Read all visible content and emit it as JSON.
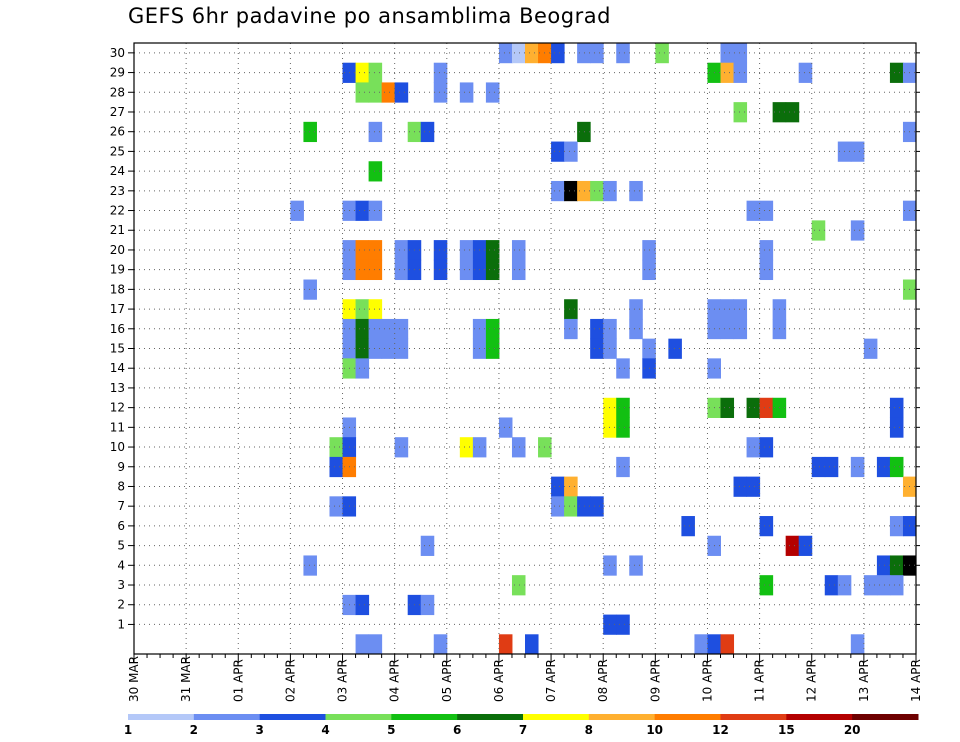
{
  "chart_data": {
    "type": "heatmap",
    "title": "GEFS 6hr padavine po ansamblima Beograd",
    "xlabel": "",
    "ylabel": "",
    "x_ticks": [
      "30 MAR",
      "31 MAR",
      "01 APR",
      "02 APR",
      "03 APR",
      "04 APR",
      "05 APR",
      "06 APR",
      "07 APR",
      "08 APR",
      "09 APR",
      "10 APR",
      "11 APR",
      "12 APR",
      "13 APR",
      "14 APR"
    ],
    "y_ticks": [
      "1",
      "2",
      "3",
      "4",
      "5",
      "6",
      "7",
      "8",
      "9",
      "10",
      "11",
      "12",
      "13",
      "14",
      "15",
      "16",
      "17",
      "18",
      "19",
      "20",
      "21",
      "22",
      "23",
      "24",
      "25",
      "26",
      "27",
      "28",
      "29",
      "30"
    ],
    "x_range_days": [
      0,
      15
    ],
    "y_range_members": [
      0,
      30
    ],
    "grid": true,
    "legend": {
      "placement": "bottom",
      "colors": [
        "#b4c8f8",
        "#6c8ef2",
        "#1e4fe0",
        "#78e05a",
        "#12c012",
        "#0b6e0b",
        "#ffff00",
        "#ffb030",
        "#ff7d00",
        "#e03c14",
        "#b40000",
        "#6e0000"
      ],
      "labels": [
        "1",
        "2",
        "3",
        "4",
        "5",
        "6",
        "7",
        "8",
        "10",
        "12",
        "15",
        "20"
      ]
    },
    "cells": [
      {
        "m": 30,
        "t": [
          [
            28,
            1
          ],
          [
            29,
            0
          ],
          [
            30,
            7
          ],
          [
            31,
            8
          ],
          [
            32,
            2
          ],
          [
            34,
            1
          ],
          [
            35,
            1
          ],
          [
            37,
            1
          ],
          [
            40,
            3
          ],
          [
            45,
            1
          ],
          [
            46,
            1
          ]
        ]
      },
      {
        "m": 29,
        "t": [
          [
            16,
            2
          ],
          [
            17,
            6
          ],
          [
            18,
            3
          ],
          [
            23,
            1
          ],
          [
            44,
            4
          ],
          [
            45,
            7
          ],
          [
            46,
            1
          ],
          [
            51,
            1
          ],
          [
            58,
            5
          ],
          [
            59,
            1
          ]
        ]
      },
      {
        "m": 28,
        "t": [
          [
            17,
            3
          ],
          [
            18,
            3
          ],
          [
            19,
            8
          ],
          [
            20,
            2
          ],
          [
            23,
            1
          ],
          [
            25,
            1
          ],
          [
            27,
            1
          ]
        ]
      },
      {
        "m": 27,
        "t": [
          [
            46,
            3
          ],
          [
            49,
            5
          ],
          [
            50,
            5
          ]
        ]
      },
      {
        "m": 26,
        "t": [
          [
            13,
            4
          ],
          [
            18,
            1
          ],
          [
            21,
            3
          ],
          [
            22,
            2
          ],
          [
            34,
            5
          ],
          [
            59,
            1
          ]
        ]
      },
      {
        "m": 25,
        "t": [
          [
            32,
            2
          ],
          [
            33,
            1
          ],
          [
            54,
            1
          ],
          [
            55,
            1
          ]
        ]
      },
      {
        "m": 24,
        "t": [
          [
            18,
            4
          ]
        ]
      },
      {
        "m": 23,
        "t": [
          [
            32,
            1
          ],
          [
            33,
            12
          ],
          [
            34,
            7
          ],
          [
            35,
            3
          ],
          [
            36,
            1
          ],
          [
            38,
            1
          ]
        ]
      },
      {
        "m": 22,
        "t": [
          [
            12,
            1
          ],
          [
            16,
            1
          ],
          [
            17,
            2
          ],
          [
            18,
            1
          ],
          [
            47,
            1
          ],
          [
            48,
            1
          ],
          [
            59,
            1
          ]
        ]
      },
      {
        "m": 21,
        "t": [
          [
            52,
            3
          ],
          [
            55,
            1
          ]
        ]
      },
      {
        "m": 20,
        "t": [
          [
            16,
            1
          ],
          [
            17,
            8
          ],
          [
            18,
            8
          ],
          [
            20,
            1
          ],
          [
            21,
            2
          ],
          [
            23,
            2
          ],
          [
            25,
            1
          ],
          [
            26,
            2
          ],
          [
            27,
            5
          ],
          [
            29,
            1
          ],
          [
            39,
            1
          ],
          [
            48,
            1
          ]
        ]
      },
      {
        "m": 19,
        "t": [
          [
            16,
            1
          ],
          [
            17,
            8
          ],
          [
            18,
            8
          ],
          [
            20,
            1
          ],
          [
            21,
            2
          ],
          [
            23,
            2
          ],
          [
            25,
            1
          ],
          [
            26,
            2
          ],
          [
            27,
            5
          ],
          [
            29,
            1
          ],
          [
            39,
            1
          ],
          [
            48,
            1
          ]
        ]
      },
      {
        "m": 18,
        "t": [
          [
            13,
            1
          ],
          [
            59,
            3
          ]
        ]
      },
      {
        "m": 17,
        "t": [
          [
            16,
            6
          ],
          [
            17,
            3
          ],
          [
            18,
            6
          ],
          [
            33,
            5
          ],
          [
            38,
            1
          ],
          [
            44,
            1
          ],
          [
            45,
            1
          ],
          [
            46,
            1
          ],
          [
            49,
            1
          ]
        ]
      },
      {
        "m": 16,
        "t": [
          [
            16,
            1
          ],
          [
            17,
            5
          ],
          [
            18,
            1
          ],
          [
            19,
            1
          ],
          [
            20,
            1
          ],
          [
            26,
            1
          ],
          [
            27,
            4
          ],
          [
            33,
            1
          ],
          [
            35,
            2
          ],
          [
            36,
            1
          ],
          [
            38,
            1
          ],
          [
            44,
            1
          ],
          [
            45,
            1
          ],
          [
            46,
            1
          ],
          [
            49,
            1
          ]
        ]
      },
      {
        "m": 15,
        "t": [
          [
            16,
            1
          ],
          [
            17,
            5
          ],
          [
            18,
            1
          ],
          [
            19,
            1
          ],
          [
            20,
            1
          ],
          [
            26,
            1
          ],
          [
            27,
            4
          ],
          [
            35,
            2
          ],
          [
            36,
            1
          ],
          [
            39,
            1
          ],
          [
            41,
            2
          ],
          [
            56,
            1
          ]
        ]
      },
      {
        "m": 14,
        "t": [
          [
            16,
            3
          ],
          [
            17,
            1
          ],
          [
            37,
            1
          ],
          [
            39,
            2
          ],
          [
            44,
            1
          ]
        ]
      },
      {
        "m": 13,
        "t": []
      },
      {
        "m": 12,
        "t": [
          [
            36,
            6
          ],
          [
            37,
            4
          ],
          [
            44,
            3
          ],
          [
            45,
            5
          ],
          [
            47,
            5
          ],
          [
            48,
            9
          ],
          [
            49,
            4
          ],
          [
            58,
            2
          ]
        ]
      },
      {
        "m": 11,
        "t": [
          [
            16,
            1
          ],
          [
            28,
            1
          ],
          [
            36,
            6
          ],
          [
            37,
            4
          ],
          [
            58,
            2
          ]
        ]
      },
      {
        "m": 10,
        "t": [
          [
            15,
            3
          ],
          [
            16,
            2
          ],
          [
            20,
            1
          ],
          [
            25,
            6
          ],
          [
            26,
            1
          ],
          [
            29,
            1
          ],
          [
            31,
            3
          ],
          [
            47,
            1
          ],
          [
            48,
            2
          ]
        ]
      },
      {
        "m": 9,
        "t": [
          [
            15,
            2
          ],
          [
            16,
            8
          ],
          [
            37,
            1
          ],
          [
            52,
            2
          ],
          [
            53,
            2
          ],
          [
            55,
            1
          ],
          [
            57,
            2
          ],
          [
            58,
            4
          ]
        ]
      },
      {
        "m": 8,
        "t": [
          [
            32,
            2
          ],
          [
            33,
            7
          ],
          [
            46,
            2
          ],
          [
            47,
            2
          ],
          [
            59,
            7
          ]
        ]
      },
      {
        "m": 7,
        "t": [
          [
            15,
            1
          ],
          [
            16,
            2
          ],
          [
            32,
            1
          ],
          [
            33,
            3
          ],
          [
            34,
            2
          ],
          [
            35,
            2
          ]
        ]
      },
      {
        "m": 6,
        "t": [
          [
            42,
            2
          ],
          [
            48,
            2
          ],
          [
            58,
            1
          ],
          [
            59,
            2
          ]
        ]
      },
      {
        "m": 5,
        "t": [
          [
            22,
            1
          ],
          [
            44,
            1
          ],
          [
            50,
            10
          ],
          [
            51,
            2
          ]
        ]
      },
      {
        "m": 4,
        "t": [
          [
            13,
            1
          ],
          [
            36,
            1
          ],
          [
            38,
            1
          ],
          [
            57,
            2
          ],
          [
            58,
            5
          ],
          [
            59,
            12
          ]
        ]
      },
      {
        "m": 3,
        "t": [
          [
            29,
            3
          ],
          [
            48,
            4
          ],
          [
            53,
            2
          ],
          [
            54,
            1
          ],
          [
            56,
            1
          ],
          [
            57,
            1
          ],
          [
            58,
            1
          ]
        ]
      },
      {
        "m": 2,
        "t": [
          [
            16,
            1
          ],
          [
            17,
            2
          ],
          [
            21,
            2
          ],
          [
            22,
            1
          ]
        ]
      },
      {
        "m": 1,
        "t": [
          [
            36,
            2
          ],
          [
            37,
            2
          ]
        ]
      },
      {
        "m": 0,
        "t": [
          [
            17,
            1
          ],
          [
            18,
            1
          ],
          [
            23,
            1
          ],
          [
            28,
            9
          ],
          [
            30,
            2
          ],
          [
            43,
            1
          ],
          [
            44,
            2
          ],
          [
            45,
            9
          ],
          [
            55,
            1
          ]
        ]
      }
    ]
  }
}
